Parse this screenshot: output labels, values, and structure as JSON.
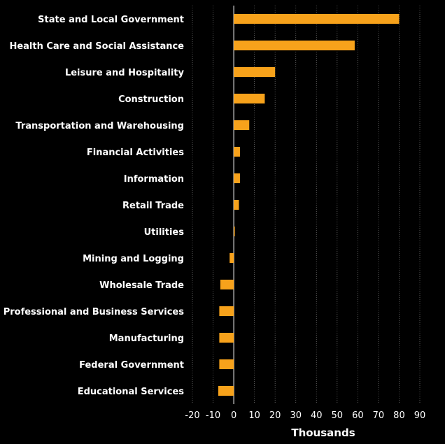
{
  "chart_data": {
    "type": "bar",
    "orientation": "horizontal",
    "categories": [
      "State and Local Government",
      "Health Care and Social Assistance",
      "Leisure and Hospitality",
      "Construction",
      "Transportation and Warehousing",
      "Financial Activities",
      "Information",
      "Retail Trade",
      "Utilities",
      "Mining and Logging",
      "Wholesale Trade",
      "Professional and Business Services",
      "Manufacturing",
      "Federal Government",
      "Educational Services"
    ],
    "values": [
      80,
      58.5,
      20,
      15,
      7.5,
      3,
      3,
      2.5,
      0.5,
      -2,
      -6.5,
      -7,
      -7,
      -7,
      -7.5
    ],
    "xlabel": "Thousands",
    "ylabel": "",
    "xlim": [
      -20,
      90
    ],
    "xticks": [
      "-20",
      "-10",
      "0",
      "10",
      "20",
      "30",
      "40",
      "50",
      "60",
      "70",
      "80",
      "90"
    ],
    "grid": true,
    "legend": "none"
  },
  "colors": {
    "background": "#000000",
    "bar": "#f7a21b",
    "text": "#ffffff",
    "gridline": "#6b6b6b",
    "zero_line": "#ffffff"
  }
}
